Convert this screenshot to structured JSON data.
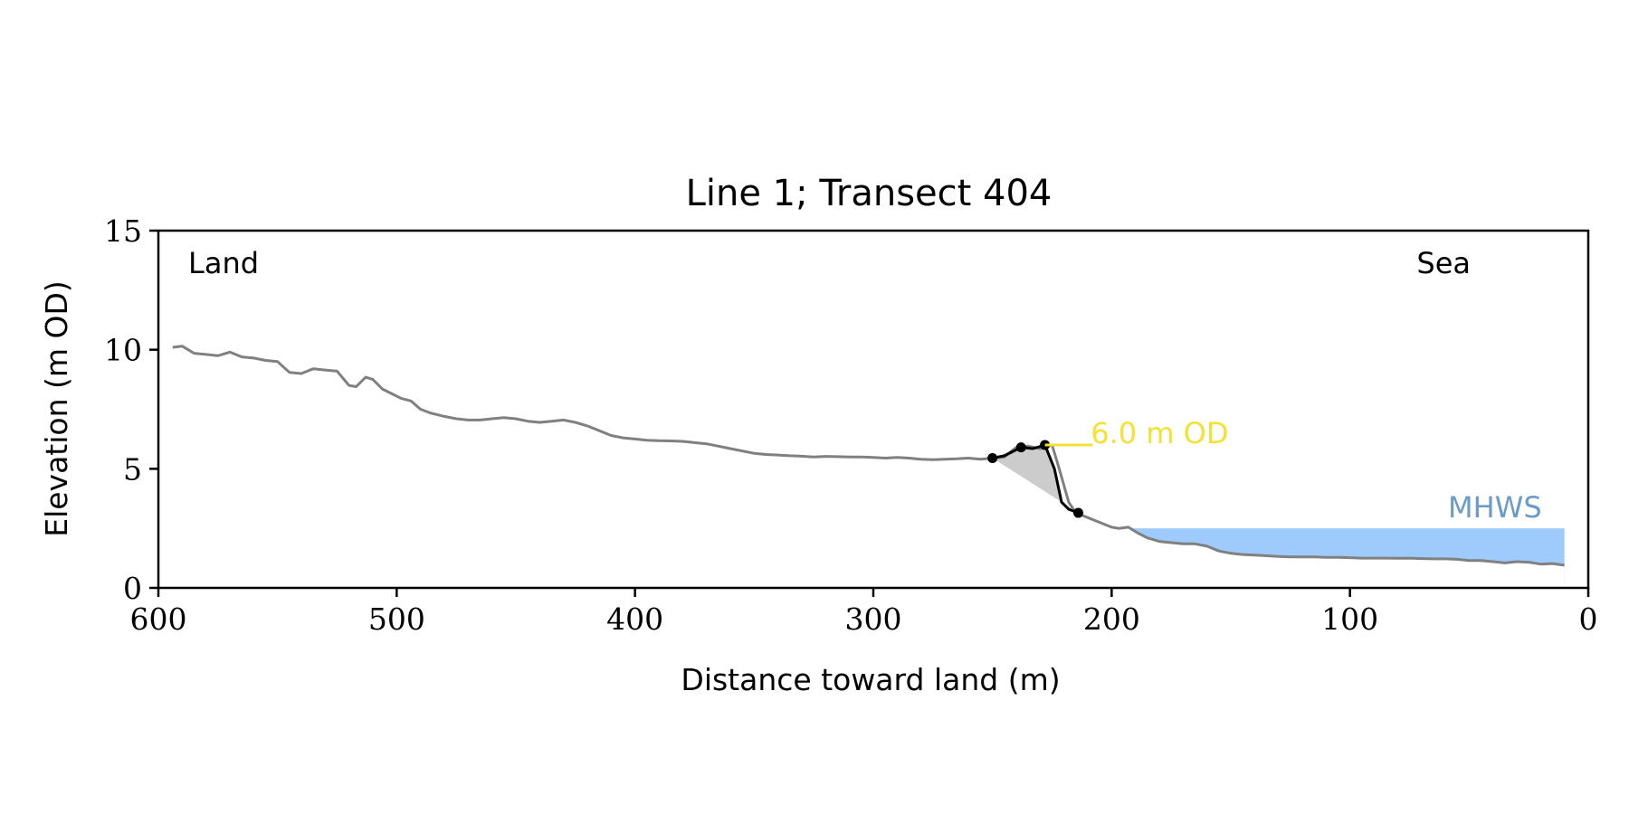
{
  "chart_data": {
    "type": "line",
    "title": "Line 1; Transect 404",
    "xlabel": "Distance toward land (m)",
    "ylabel": "Elevation (m OD)",
    "xlim": [
      600,
      0
    ],
    "ylim": [
      0,
      15
    ],
    "x_ticks": [
      600,
      500,
      400,
      300,
      200,
      100,
      0
    ],
    "y_ticks": [
      0,
      5,
      10,
      15
    ],
    "grid": false,
    "legend": "none",
    "corner_labels": {
      "left": "Land",
      "right": "Sea"
    },
    "profile": {
      "color": "#808080",
      "x": [
        594,
        590,
        585,
        580,
        575,
        570,
        565,
        560,
        555,
        550,
        545,
        540,
        535,
        530,
        525,
        520,
        517,
        513,
        510,
        506,
        502,
        498,
        494,
        490,
        486,
        480,
        475,
        470,
        465,
        460,
        455,
        450,
        445,
        440,
        435,
        430,
        425,
        420,
        415,
        410,
        405,
        400,
        395,
        390,
        385,
        380,
        375,
        370,
        365,
        360,
        355,
        350,
        345,
        340,
        335,
        330,
        325,
        320,
        315,
        310,
        305,
        300,
        295,
        290,
        285,
        280,
        275,
        270,
        265,
        260,
        255,
        250,
        245,
        240,
        235,
        230,
        228,
        225,
        222,
        218,
        215,
        210,
        205,
        200,
        197,
        193,
        189,
        185,
        180,
        175,
        170,
        165,
        160,
        155,
        150,
        145,
        140,
        135,
        130,
        125,
        120,
        115,
        110,
        105,
        100,
        95,
        90,
        85,
        80,
        75,
        70,
        65,
        60,
        55,
        50,
        45,
        40,
        35,
        30,
        25,
        20,
        15,
        10
      ],
      "y": [
        10.1,
        10.15,
        9.85,
        9.8,
        9.75,
        9.9,
        9.7,
        9.65,
        9.55,
        9.5,
        9.05,
        9.0,
        9.2,
        9.15,
        9.1,
        8.5,
        8.45,
        8.85,
        8.75,
        8.35,
        8.15,
        7.95,
        7.85,
        7.5,
        7.35,
        7.2,
        7.1,
        7.05,
        7.05,
        7.1,
        7.15,
        7.1,
        7.0,
        6.95,
        7.0,
        7.05,
        6.95,
        6.8,
        6.6,
        6.4,
        6.3,
        6.25,
        6.2,
        6.18,
        6.17,
        6.15,
        6.1,
        6.05,
        5.95,
        5.85,
        5.75,
        5.65,
        5.6,
        5.58,
        5.55,
        5.53,
        5.5,
        5.52,
        5.51,
        5.5,
        5.5,
        5.48,
        5.45,
        5.48,
        5.45,
        5.4,
        5.38,
        5.4,
        5.42,
        5.45,
        5.4,
        5.45,
        5.5,
        5.9,
        5.95,
        5.85,
        5.9,
        6.0,
        5.0,
        3.6,
        3.15,
        2.95,
        2.75,
        2.55,
        2.5,
        2.55,
        2.3,
        2.1,
        1.95,
        1.9,
        1.85,
        1.85,
        1.75,
        1.55,
        1.45,
        1.4,
        1.38,
        1.35,
        1.32,
        1.3,
        1.3,
        1.3,
        1.28,
        1.28,
        1.27,
        1.25,
        1.25,
        1.25,
        1.24,
        1.25,
        1.23,
        1.22,
        1.22,
        1.2,
        1.15,
        1.15,
        1.1,
        1.05,
        1.1,
        1.08,
        1.0,
        1.02,
        0.95
      ]
    },
    "highlight": {
      "color": "#000000",
      "fill_color": "#cccccc",
      "x": [
        250,
        245,
        238,
        233,
        228,
        224,
        221,
        218,
        214
      ],
      "y": [
        5.45,
        5.55,
        5.9,
        5.85,
        6.0,
        5.0,
        3.6,
        3.3,
        3.15
      ],
      "markers_x": [
        250,
        238,
        228,
        214
      ],
      "markers_y": [
        5.45,
        5.9,
        6.0,
        3.15
      ]
    },
    "threshold": {
      "label": "6.0 m OD",
      "color": "#f5e132",
      "y": 6.0,
      "x_start": 228,
      "x_end": 208
    },
    "mhws": {
      "label": "MHWS",
      "label_color": "#6b9bc8",
      "fill_color": "#9ecbfb",
      "level": 2.5,
      "x_start": 195,
      "x_end": 10
    }
  }
}
